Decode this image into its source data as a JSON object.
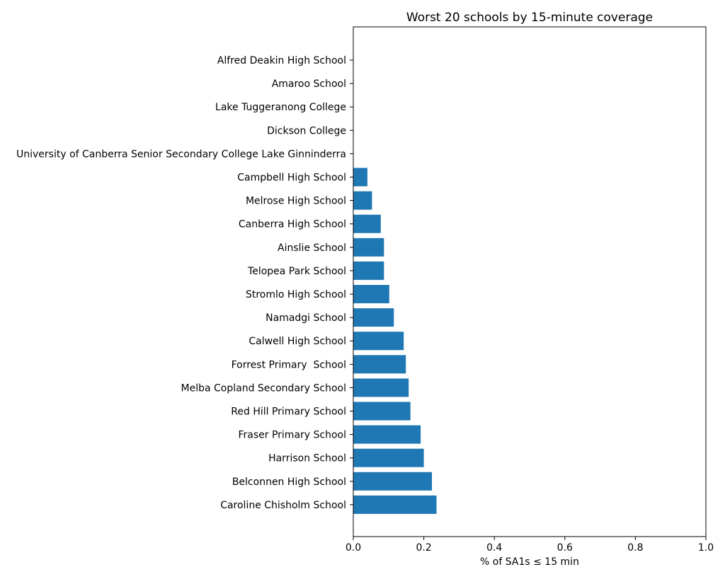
{
  "chart_data": {
    "type": "bar",
    "orientation": "horizontal",
    "title": "Worst 20 schools by 15-minute coverage",
    "xlabel": "% of SA1s ≤ 15 min",
    "ylabel": "",
    "xlim": [
      0.0,
      1.0
    ],
    "xticks": [
      "0.0",
      "0.2",
      "0.4",
      "0.6",
      "0.8",
      "1.0"
    ],
    "bar_color": "#1f77b4",
    "categories": [
      "Alfred Deakin High School",
      "Amaroo School",
      "Lake Tuggeranong College",
      "Dickson College",
      "University of Canberra Senior Secondary College Lake Ginninderra",
      "Campbell High School",
      "Melrose High School",
      "Canberra High School",
      "Ainslie School",
      "Telopea Park School",
      "Stromlo High School",
      "Namadgi School",
      "Calwell High School",
      "Forrest Primary  School",
      "Melba Copland Secondary School",
      "Red Hill Primary School",
      "Fraser Primary School",
      "Harrison School",
      "Belconnen High School",
      "Caroline Chisholm School"
    ],
    "values": [
      0.0,
      0.0,
      0.0,
      0.0,
      0.0,
      0.04,
      0.053,
      0.078,
      0.087,
      0.087,
      0.102,
      0.115,
      0.143,
      0.149,
      0.157,
      0.162,
      0.191,
      0.2,
      0.223,
      0.236
    ],
    "grid": false
  }
}
